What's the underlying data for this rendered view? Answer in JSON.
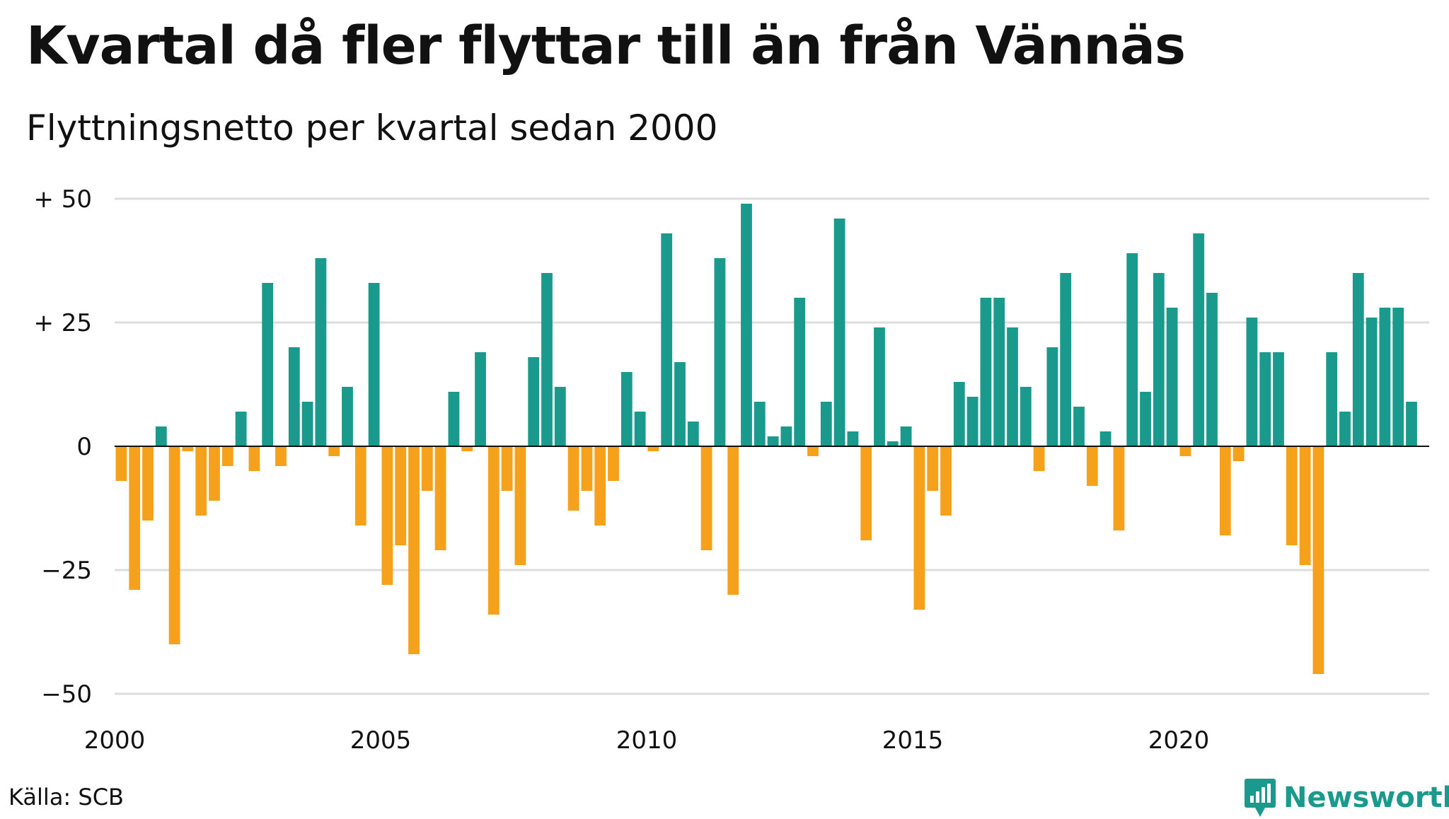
{
  "header": {
    "title": "Kvartal då fler flyttar till än från Vännäs",
    "subtitle": "Flyttningsnetto per kvartal sedan 2000"
  },
  "footer": {
    "source": "Källa: SCB",
    "logo_text": "Newsworthy",
    "logo_icon": "newsworthy-logo-icon"
  },
  "colors": {
    "positive": "#1a9a8c",
    "negative": "#f6a11c",
    "grid": "#dddddd",
    "zero_line": "#111111"
  },
  "chart_data": {
    "type": "bar",
    "x_start_year": 2000,
    "periods_per_year": 4,
    "values": [
      -7,
      -29,
      -15,
      4,
      -40,
      -1,
      -14,
      -11,
      -4,
      7,
      -5,
      33,
      -4,
      20,
      9,
      38,
      -2,
      12,
      -16,
      33,
      -28,
      -20,
      -42,
      -9,
      -21,
      11,
      -1,
      19,
      -34,
      -9,
      -24,
      18,
      35,
      12,
      -13,
      -9,
      -16,
      -7,
      15,
      7,
      -1,
      43,
      17,
      5,
      -21,
      38,
      -30,
      49,
      9,
      2,
      4,
      30,
      -2,
      9,
      46,
      3,
      -19,
      24,
      1,
      4,
      -33,
      -9,
      -14,
      13,
      10,
      30,
      30,
      24,
      12,
      -5,
      20,
      35,
      8,
      -8,
      3,
      -17,
      39,
      11,
      35,
      28,
      -2,
      43,
      31,
      -18,
      -3,
      26,
      19,
      19,
      -20,
      -24,
      -46,
      19,
      7,
      35,
      26,
      28,
      28,
      9
    ],
    "ylim": [
      -50,
      50
    ],
    "yticks": [
      {
        "value": 50,
        "label": "+ 50"
      },
      {
        "value": 25,
        "label": "+ 25"
      },
      {
        "value": 0,
        "label": "0"
      },
      {
        "value": -25,
        "label": "−25"
      },
      {
        "value": -50,
        "label": "−50"
      }
    ],
    "xticks": [
      {
        "year": 2000,
        "label": "2000"
      },
      {
        "year": 2005,
        "label": "2005"
      },
      {
        "year": 2010,
        "label": "2010"
      },
      {
        "year": 2015,
        "label": "2015"
      },
      {
        "year": 2020,
        "label": "2020"
      }
    ],
    "grid": true,
    "legend": "none"
  }
}
